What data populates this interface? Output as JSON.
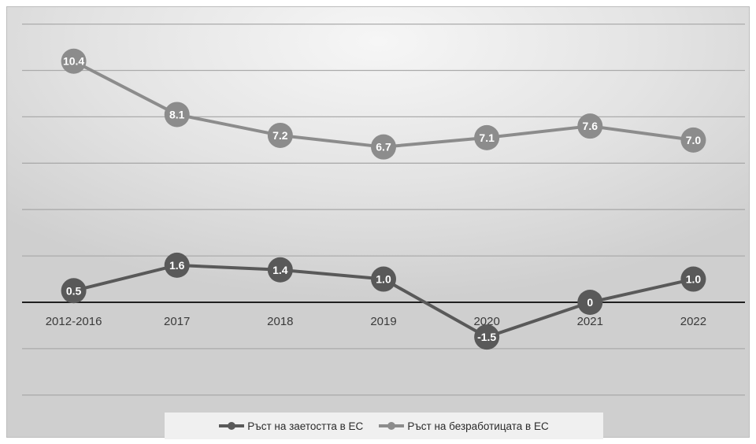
{
  "chart_data": {
    "type": "line",
    "title": "",
    "xlabel": "",
    "ylabel": "",
    "categories": [
      "2012-2016",
      "2017",
      "2018",
      "2019",
      "2020",
      "2021",
      "2022"
    ],
    "ylim": [
      -4,
      12
    ],
    "y_axis_visible": false,
    "grid": true,
    "legend": "bottom",
    "series": [
      {
        "name": "Ръст на заетостта в ЕС",
        "values": [
          0.5,
          1.6,
          1.4,
          1.0,
          -1.5,
          0,
          1.0
        ],
        "labels": [
          "0.5",
          "1.6",
          "1.4",
          "1.0",
          "-1.5",
          "0",
          "1.0"
        ],
        "color": "#595959"
      },
      {
        "name": "Ръст на безработицата в ЕС",
        "values": [
          10.4,
          8.1,
          7.2,
          6.7,
          7.1,
          7.6,
          7.0
        ],
        "labels": [
          "10.4",
          "8.1",
          "7.2",
          "6.7",
          "7.1",
          "7.6",
          "7.0"
        ],
        "color": "#8c8c8c"
      }
    ]
  }
}
